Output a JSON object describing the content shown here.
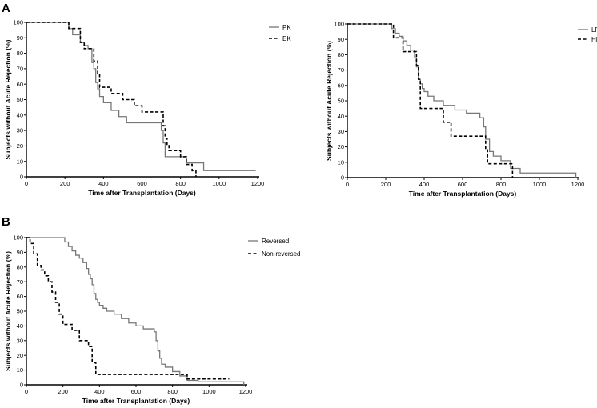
{
  "panels": {
    "a": "A",
    "b": "B"
  },
  "colors": {
    "solid": "#777777",
    "dashed": "#000000",
    "axis": "#000000"
  },
  "chart_data": [
    {
      "id": "A1",
      "type": "line",
      "step": true,
      "xlabel": "Time after Transplantation (Days)",
      "ylabel": "Subjects without Acute Rejection (%)",
      "xlim": [
        0,
        1200
      ],
      "ylim": [
        0,
        100
      ],
      "xticks": [
        0,
        200,
        400,
        600,
        800,
        1000,
        1200
      ],
      "yticks": [
        0,
        10,
        20,
        30,
        40,
        50,
        60,
        70,
        80,
        90,
        100
      ],
      "legend_position": "top-right",
      "series": [
        {
          "name": "PK",
          "style": "solid",
          "x": [
            0,
            220,
            240,
            280,
            300,
            320,
            340,
            350,
            360,
            370,
            380,
            400,
            440,
            480,
            520,
            600,
            700,
            710,
            720,
            800,
            830,
            920,
            1190
          ],
          "y": [
            100,
            96,
            92,
            87,
            85,
            83,
            74,
            70,
            61,
            57,
            52,
            48,
            43,
            39,
            35,
            35,
            30,
            22,
            13,
            13,
            9,
            4,
            4
          ]
        },
        {
          "name": "EK",
          "style": "dashed",
          "x": [
            0,
            220,
            280,
            300,
            340,
            350,
            370,
            380,
            440,
            500,
            560,
            600,
            700,
            710,
            720,
            730,
            740,
            800,
            830,
            860,
            880
          ],
          "y": [
            100,
            96,
            87,
            83,
            83,
            75,
            67,
            58,
            54,
            50,
            46,
            42,
            42,
            33,
            25,
            21,
            17,
            13,
            8,
            4,
            0
          ]
        }
      ]
    },
    {
      "id": "A2",
      "type": "line",
      "step": true,
      "xlabel": "Time after Transplantation (Days)",
      "ylabel": "Subjects without Acute Rejection (%)",
      "xlim": [
        0,
        1200
      ],
      "ylim": [
        0,
        100
      ],
      "xticks": [
        0,
        200,
        400,
        600,
        800,
        1000,
        1200
      ],
      "yticks": [
        0,
        10,
        20,
        30,
        40,
        50,
        60,
        70,
        80,
        90,
        100
      ],
      "legend_position": "top-right",
      "series": [
        {
          "name": "LR",
          "style": "solid",
          "x": [
            0,
            230,
            250,
            270,
            290,
            310,
            330,
            350,
            360,
            370,
            380,
            390,
            400,
            420,
            450,
            500,
            560,
            620,
            690,
            710,
            720,
            740,
            760,
            800,
            850,
            900,
            1190
          ],
          "y": [
            100,
            97,
            94,
            92,
            89,
            86,
            83,
            78,
            72,
            64,
            61,
            58,
            56,
            53,
            50,
            47,
            44,
            42,
            39,
            33,
            25,
            17,
            14,
            11,
            6,
            3,
            0
          ]
        },
        {
          "name": "HR",
          "style": "dashed",
          "x": [
            0,
            240,
            250,
            290,
            340,
            360,
            370,
            380,
            500,
            540,
            720,
            730,
            840,
            860
          ],
          "y": [
            100,
            91,
            91,
            82,
            82,
            73,
            64,
            45,
            36,
            27,
            18,
            9,
            9,
            0
          ]
        }
      ]
    },
    {
      "id": "B",
      "type": "line",
      "step": true,
      "xlabel": "Time after Transplantation (Days)",
      "ylabel": "Subjects without Acute Rejection (%)",
      "xlim": [
        0,
        1200
      ],
      "ylim": [
        0,
        100
      ],
      "xticks": [
        0,
        200,
        400,
        600,
        800,
        1000,
        1200
      ],
      "yticks": [
        0,
        10,
        20,
        30,
        40,
        50,
        60,
        70,
        80,
        90,
        100
      ],
      "legend_position": "top-right",
      "series": [
        {
          "name": "Reversed",
          "style": "solid",
          "x": [
            0,
            210,
            230,
            250,
            270,
            290,
            310,
            330,
            340,
            350,
            360,
            370,
            380,
            390,
            400,
            420,
            440,
            480,
            520,
            560,
            600,
            640,
            700,
            710,
            720,
            730,
            740,
            760,
            800,
            840,
            880,
            940,
            1190
          ],
          "y": [
            100,
            97,
            94,
            91,
            88,
            86,
            83,
            79,
            75,
            72,
            68,
            62,
            58,
            56,
            54,
            52,
            50,
            48,
            45,
            42,
            40,
            38,
            36,
            30,
            23,
            18,
            14,
            12,
            9,
            6,
            3,
            2,
            0
          ]
        },
        {
          "name": "Non-reversed",
          "style": "dashed",
          "x": [
            0,
            20,
            40,
            60,
            80,
            100,
            120,
            140,
            160,
            180,
            200,
            230,
            250,
            290,
            310,
            340,
            360,
            380,
            400,
            860,
            880,
            1110
          ],
          "y": [
            100,
            96,
            89,
            81,
            78,
            74,
            70,
            63,
            56,
            48,
            41,
            41,
            37,
            30,
            30,
            26,
            15,
            7,
            7,
            7,
            4,
            4
          ]
        }
      ]
    }
  ]
}
